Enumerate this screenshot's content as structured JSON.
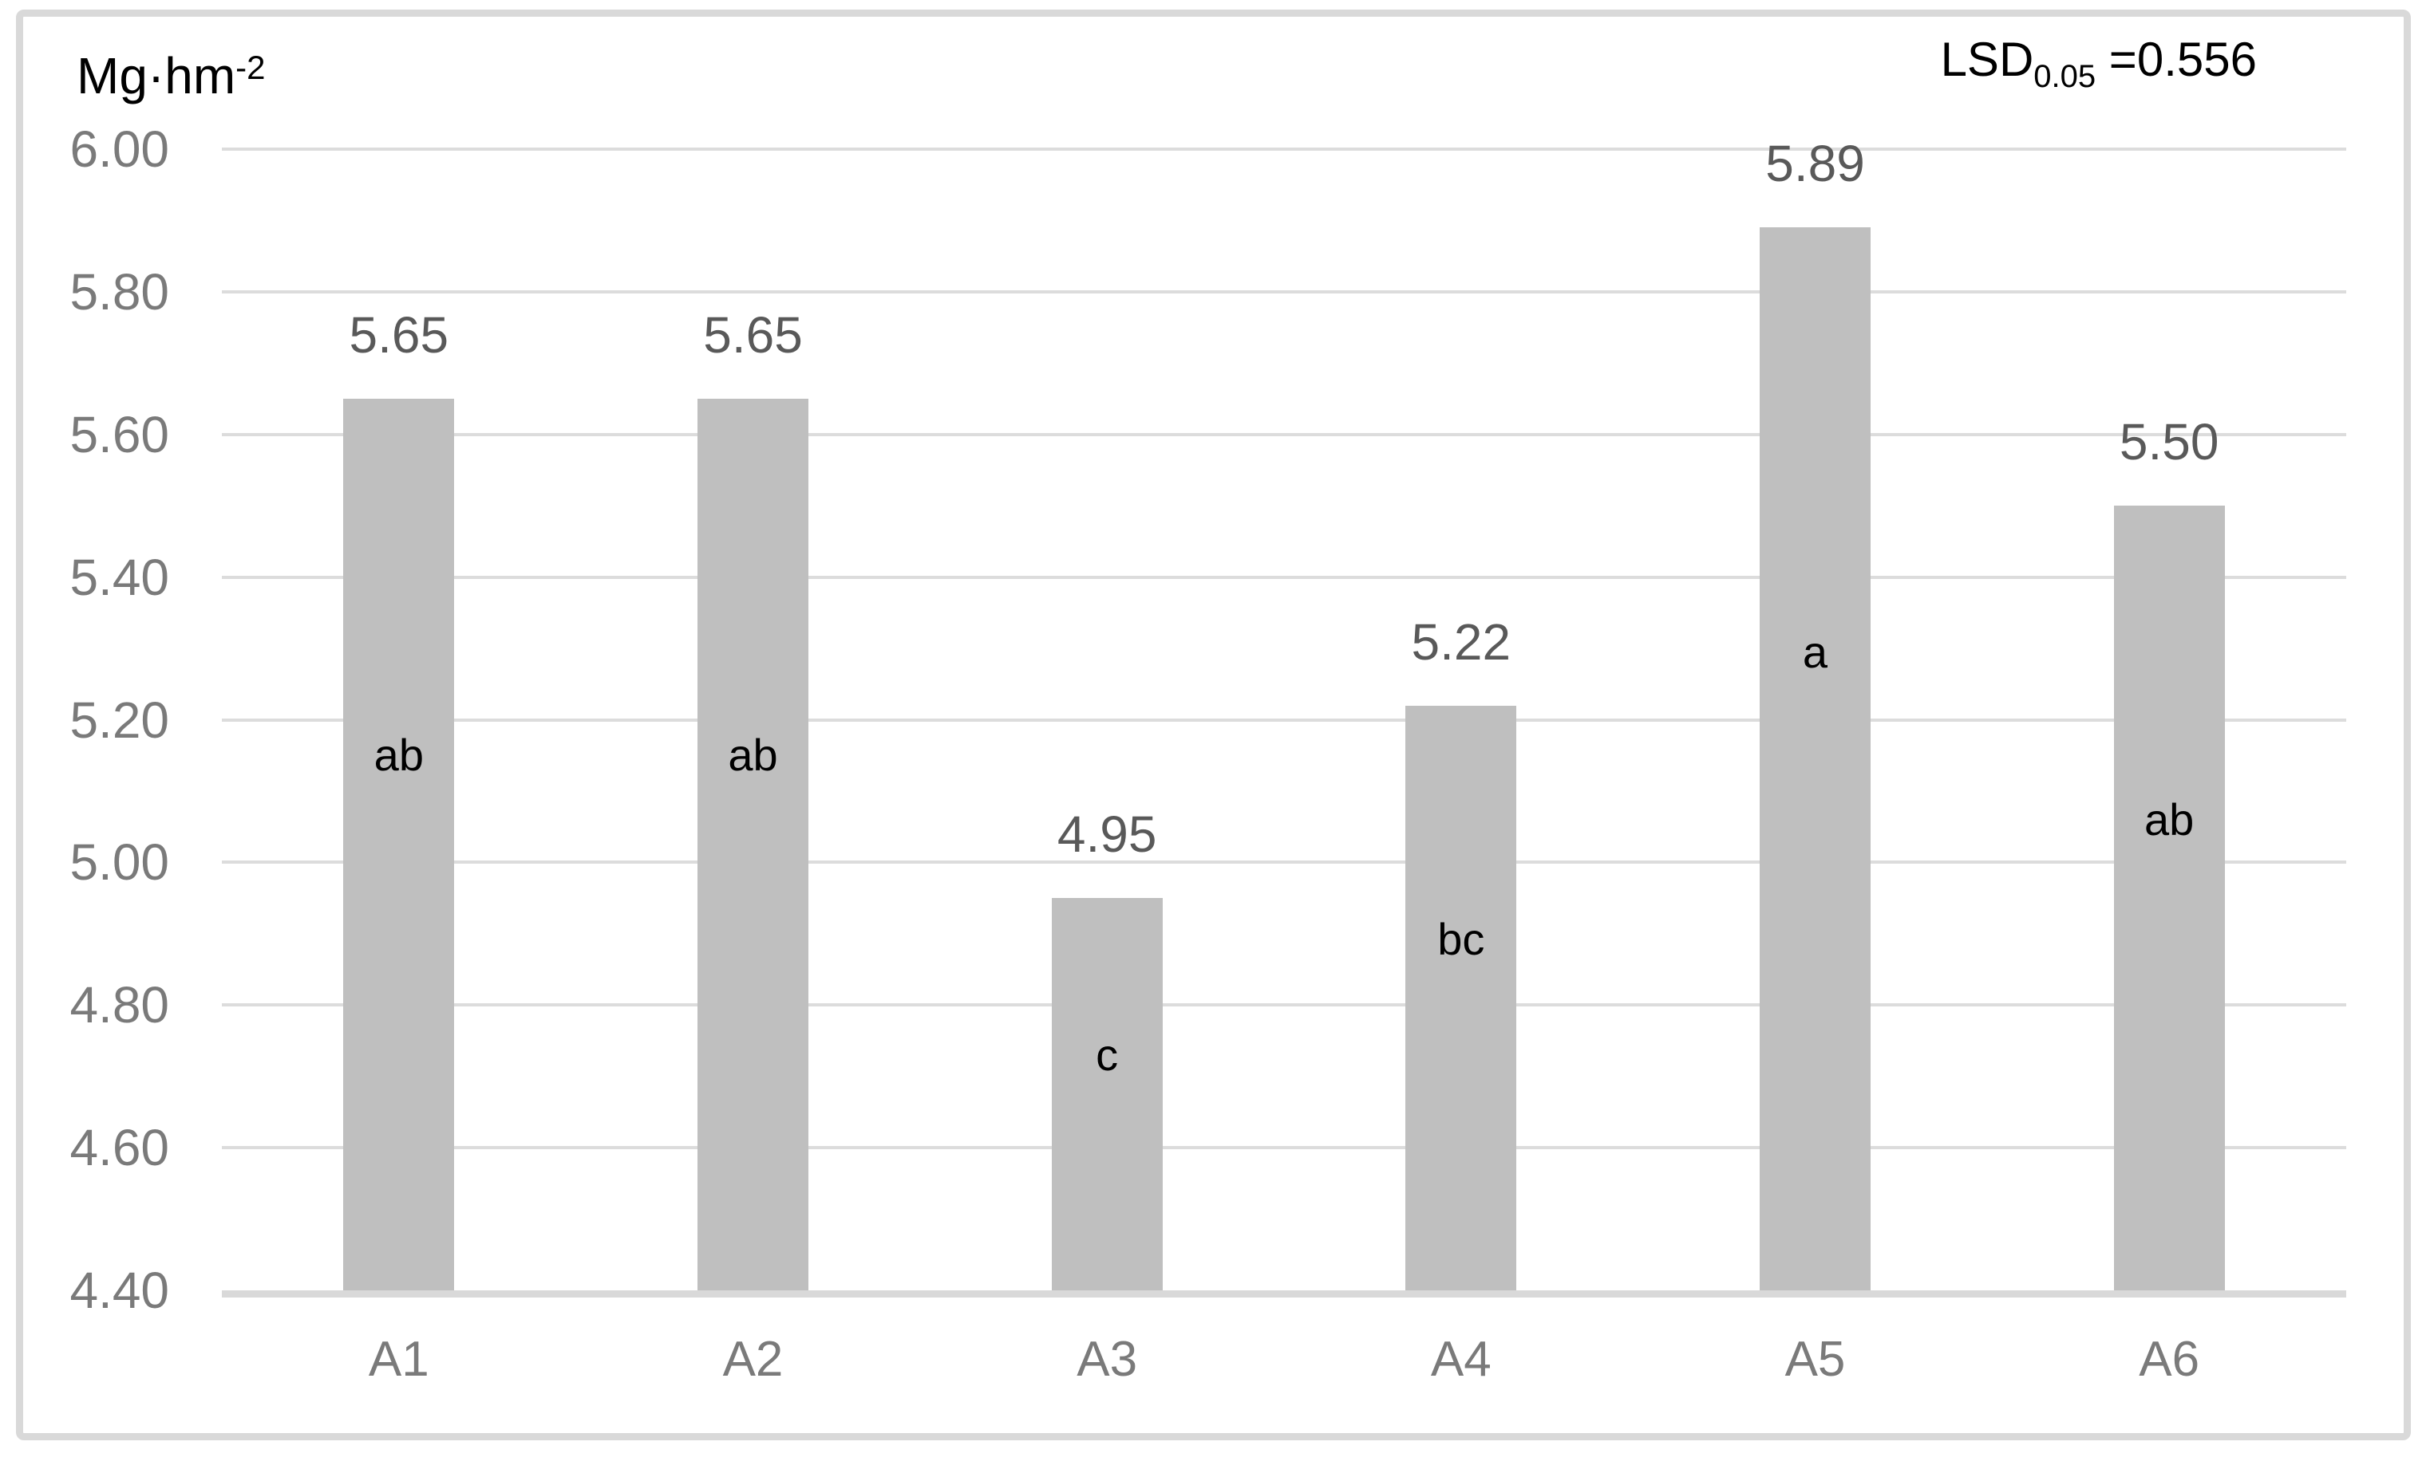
{
  "chart": {
    "unit_label": {
      "base": "Mg·hm",
      "superscript": "-2"
    },
    "annotation": {
      "prefix": "LSD",
      "subscript": "0.05",
      "rest": " =0.556"
    }
  },
  "chart_data": {
    "type": "bar",
    "categories": [
      "A1",
      "A2",
      "A3",
      "A4",
      "A5",
      "A6"
    ],
    "values": [
      5.65,
      5.65,
      4.95,
      5.22,
      5.89,
      5.5
    ],
    "value_labels": [
      "5.65",
      "5.65",
      "4.95",
      "5.22",
      "5.89",
      "5.50"
    ],
    "significance_letters": [
      "ab",
      "ab",
      "c",
      "bc",
      "a",
      "ab"
    ],
    "title": "",
    "xlabel": "",
    "ylabel": "Mg·hm-2",
    "annotation_text": "LSD0.05 =0.556",
    "ylim": [
      4.4,
      6.0
    ],
    "ytick_step": 0.2,
    "ytick_labels": [
      "6.00",
      "5.80",
      "5.60",
      "5.40",
      "5.20",
      "5.00",
      "4.80",
      "4.60",
      "4.40"
    ],
    "grid": true,
    "legend_position": "none",
    "colors": {
      "bar_fill": "#bfbfbf",
      "gridline": "#dcdcdc",
      "axis_line": "#d9d9d9",
      "frame_border": "#d9d9d9",
      "tick_label": "#7a7a7a",
      "value_label": "#595959",
      "letter_label": "#000000",
      "background": "#ffffff"
    }
  }
}
